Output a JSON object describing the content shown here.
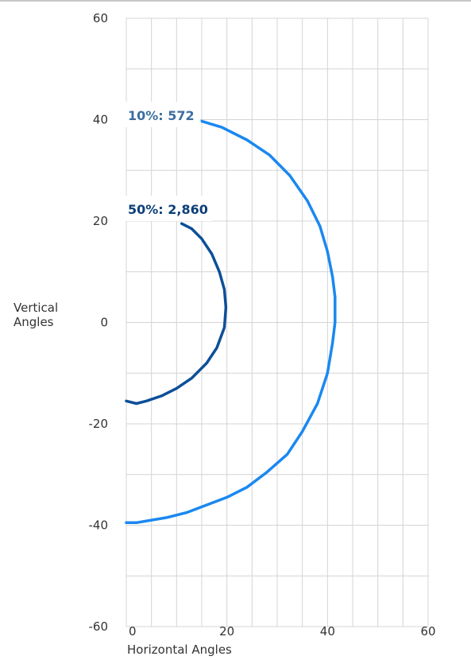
{
  "chart_data": {
    "type": "line",
    "title": "",
    "xlabel": "Horizontal Angles",
    "ylabel_lines": [
      "Vertical",
      "Angles"
    ],
    "xlim": [
      0,
      60
    ],
    "ylim": [
      -60,
      60
    ],
    "x_ticks": [
      "0",
      "20",
      "40",
      "60"
    ],
    "y_ticks": [
      "60",
      "40",
      "20",
      "0",
      "-20",
      "-40",
      "-60"
    ],
    "grid": true,
    "series": [
      {
        "name": "10%: 572",
        "color": "#1a88f0",
        "points": [
          [
            0,
            -39.5
          ],
          [
            2,
            -39.5
          ],
          [
            5,
            -39
          ],
          [
            8,
            -38.5
          ],
          [
            12,
            -37.5
          ],
          [
            16,
            -36
          ],
          [
            20,
            -34.5
          ],
          [
            24,
            -32.5
          ],
          [
            28,
            -29.5
          ],
          [
            32,
            -26
          ],
          [
            35,
            -21.5
          ],
          [
            38,
            -16
          ],
          [
            40,
            -10
          ],
          [
            41,
            -4
          ],
          [
            41.5,
            0
          ],
          [
            41.5,
            5
          ],
          [
            41,
            9
          ],
          [
            40,
            14
          ],
          [
            38.5,
            19
          ],
          [
            36,
            24
          ],
          [
            32.5,
            29
          ],
          [
            28.5,
            33
          ],
          [
            24,
            36
          ],
          [
            19,
            38.5
          ],
          [
            14,
            40
          ]
        ]
      },
      {
        "name": "50%: 2,860",
        "color": "#0d4f98",
        "points": [
          [
            0,
            -15.5
          ],
          [
            2,
            -16
          ],
          [
            4,
            -15.5
          ],
          [
            7,
            -14.5
          ],
          [
            10,
            -13
          ],
          [
            13,
            -11
          ],
          [
            16,
            -8
          ],
          [
            18,
            -5
          ],
          [
            19.5,
            -1
          ],
          [
            19.8,
            3
          ],
          [
            19.5,
            6.5
          ],
          [
            18.5,
            10
          ],
          [
            17,
            13.5
          ],
          [
            15,
            16.5
          ],
          [
            13,
            18.5
          ],
          [
            11,
            19.5
          ]
        ]
      }
    ]
  }
}
